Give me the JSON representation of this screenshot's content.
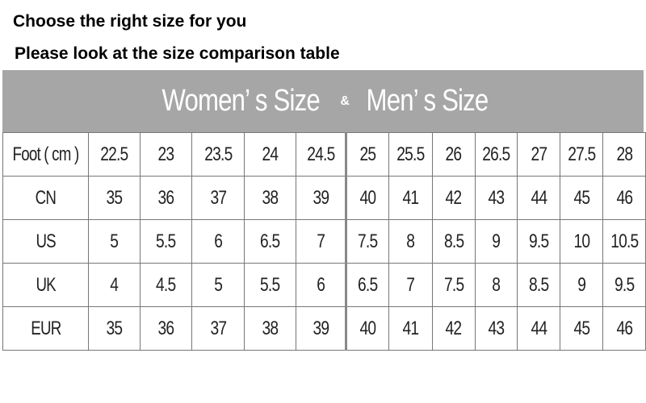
{
  "headings": [
    "Choose the right size for you",
    "Please look at the size comparison table"
  ],
  "banner": {
    "women": "Women’ s Size",
    "amp": "&",
    "men": "Men’ s Size",
    "color": "#a6a6a6"
  },
  "rows": [
    {
      "label": "Foot ( cm )",
      "values": [
        "22.5",
        "23",
        "23.5",
        "24",
        "24.5",
        "25",
        "25.5",
        "26",
        "26.5",
        "27",
        "27.5",
        "28"
      ]
    },
    {
      "label": "CN",
      "values": [
        "35",
        "36",
        "37",
        "38",
        "39",
        "40",
        "41",
        "42",
        "43",
        "44",
        "45",
        "46"
      ]
    },
    {
      "label": "US",
      "values": [
        "5",
        "5.5",
        "6",
        "6.5",
        "7",
        "7.5",
        "8",
        "8.5",
        "9",
        "9.5",
        "10",
        "10.5"
      ]
    },
    {
      "label": "UK",
      "values": [
        "4",
        "4.5",
        "5",
        "5.5",
        "6",
        "6.5",
        "7",
        "7.5",
        "8",
        "8.5",
        "9",
        "9.5"
      ]
    },
    {
      "label": "EUR",
      "values": [
        "35",
        "36",
        "37",
        "38",
        "39",
        "40",
        "41",
        "42",
        "43",
        "44",
        "45",
        "46"
      ]
    }
  ]
}
